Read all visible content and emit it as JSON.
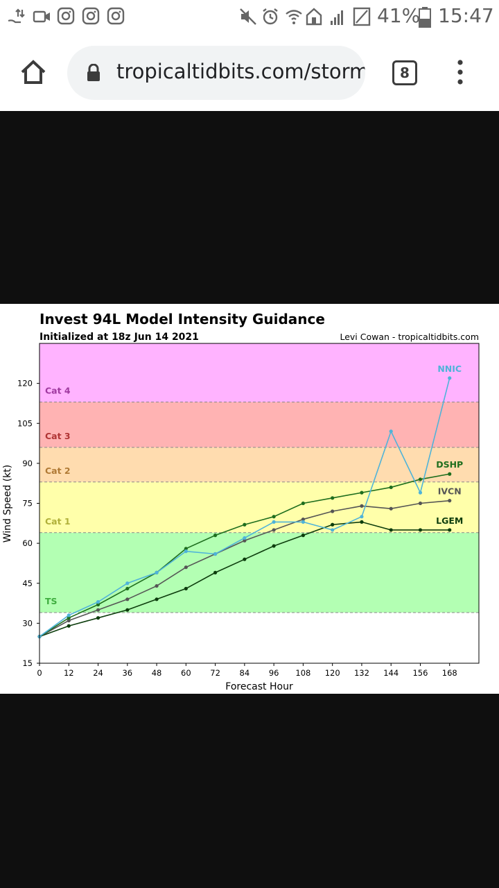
{
  "status_bar": {
    "battery": "41%",
    "time": "15:47",
    "icons_left": [
      "transfer-icon",
      "video-icon",
      "instagram-icon",
      "instagram-icon",
      "instagram-icon"
    ],
    "icons_right": [
      "mute-icon",
      "alarm-icon",
      "wifi-icon",
      "home-icon",
      "signal-icon",
      "no-sim-icon",
      "battery-icon"
    ]
  },
  "browser": {
    "url": "tropicaltidbits.com/storm",
    "tab_count": "8"
  },
  "chart_data": {
    "type": "line",
    "title": "Invest 94L Model Intensity Guidance",
    "subtitle": "Initialized at 18z Jun 14 2021",
    "credit": "Levi Cowan - tropicaltidbits.com",
    "xlabel": "Forecast Hour",
    "ylabel": "Wind Speed (kt)",
    "xlim": [
      0,
      180
    ],
    "ylim": [
      15,
      135
    ],
    "xticks": [
      0,
      12,
      24,
      36,
      48,
      60,
      72,
      84,
      96,
      108,
      120,
      132,
      144,
      156,
      168
    ],
    "yticks": [
      15,
      30,
      45,
      60,
      75,
      90,
      105,
      120
    ],
    "bands": [
      {
        "label": "TS",
        "from": 34,
        "to": 64,
        "color": "#b3ffb3",
        "label_color": "#3fae3f"
      },
      {
        "label": "Cat 1",
        "from": 64,
        "to": 83,
        "color": "#ffffaa",
        "label_color": "#b0b03a"
      },
      {
        "label": "Cat 2",
        "from": 83,
        "to": 96,
        "color": "#ffdcaf",
        "label_color": "#b07a35"
      },
      {
        "label": "Cat 3",
        "from": 96,
        "to": 113,
        "color": "#ffb3b3",
        "label_color": "#b03535"
      },
      {
        "label": "Cat 4",
        "from": 113,
        "to": 135,
        "color": "#ffb3ff",
        "label_color": "#a03aa0"
      }
    ],
    "x": [
      0,
      12,
      24,
      36,
      48,
      60,
      72,
      84,
      96,
      108,
      120,
      132,
      144,
      156,
      168
    ],
    "series": [
      {
        "name": "LGEM",
        "color": "#0d3d0d",
        "values": [
          25,
          29,
          32,
          35,
          39,
          43,
          49,
          54,
          59,
          63,
          67,
          68,
          65,
          65,
          65
        ]
      },
      {
        "name": "IVCN",
        "color": "#555555",
        "values": [
          25,
          31,
          35,
          39,
          44,
          51,
          56,
          61,
          65,
          69,
          72,
          74,
          73,
          75,
          76
        ]
      },
      {
        "name": "DSHP",
        "color": "#1e6e1e",
        "values": [
          25,
          32,
          37,
          43,
          49,
          58,
          63,
          67,
          70,
          75,
          77,
          79,
          81,
          84,
          86
        ]
      },
      {
        "name": "NNIC",
        "color": "#4fb3d9",
        "values": [
          25,
          33,
          38,
          45,
          49,
          57,
          56,
          62,
          68,
          68,
          65,
          70,
          102,
          79,
          122
        ]
      }
    ]
  }
}
